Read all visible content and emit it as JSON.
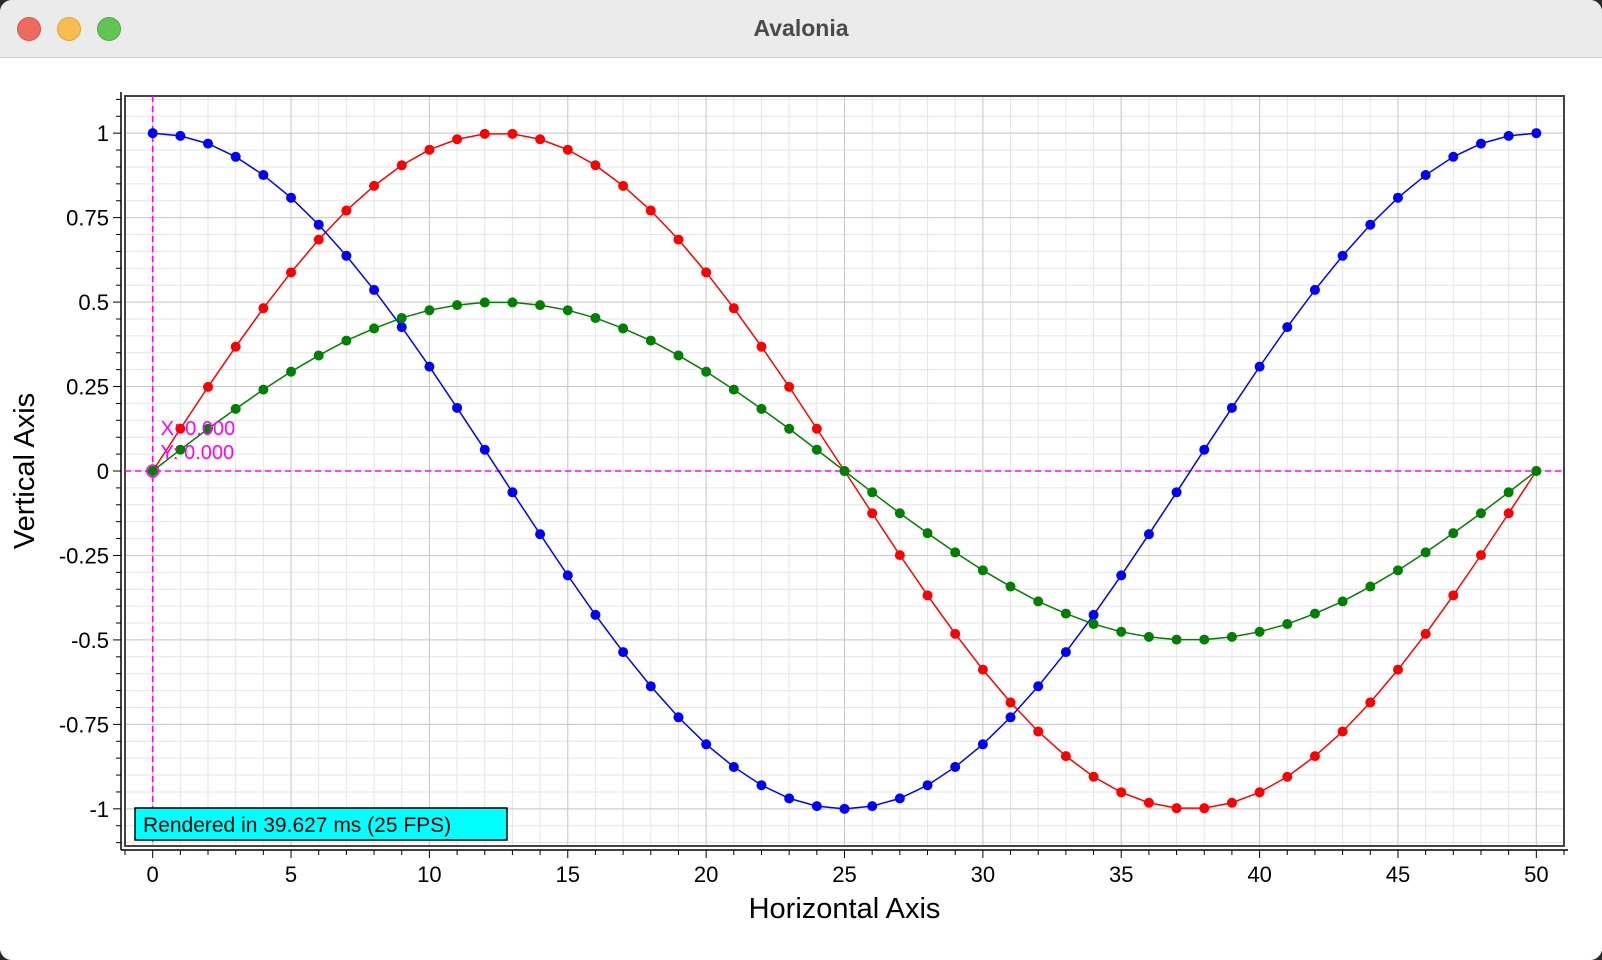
{
  "window": {
    "title": "Avalonia"
  },
  "chart_data": {
    "type": "line",
    "xlabel": "Horizontal Axis",
    "ylabel": "Vertical Axis",
    "xlim": [
      -1.0,
      51.0
    ],
    "ylim": [
      -1.11,
      1.11
    ],
    "x_ticks": [
      "0",
      "5",
      "10",
      "15",
      "20",
      "25",
      "30",
      "35",
      "40",
      "45",
      "50"
    ],
    "y_ticks": [
      "1",
      "0.75",
      "0.5",
      "0.25",
      "0",
      "-0.25",
      "-0.5",
      "-0.75",
      "-1"
    ],
    "grid": true,
    "x": [
      0,
      1,
      2,
      3,
      4,
      5,
      6,
      7,
      8,
      9,
      10,
      11,
      12,
      13,
      14,
      15,
      16,
      17,
      18,
      19,
      20,
      21,
      22,
      23,
      24,
      25,
      26,
      27,
      28,
      29,
      30,
      31,
      32,
      33,
      34,
      35,
      36,
      37,
      38,
      39,
      40,
      41,
      42,
      43,
      44,
      45,
      46,
      47,
      48,
      49,
      50
    ],
    "series": [
      {
        "color": "#ff0000",
        "values": [
          0.0,
          0.125,
          0.249,
          0.368,
          0.482,
          0.588,
          0.685,
          0.771,
          0.844,
          0.905,
          0.951,
          0.982,
          0.998,
          0.998,
          0.982,
          0.951,
          0.905,
          0.844,
          0.771,
          0.685,
          0.588,
          0.482,
          0.368,
          0.249,
          0.125,
          0.0,
          -0.125,
          -0.249,
          -0.368,
          -0.482,
          -0.588,
          -0.685,
          -0.771,
          -0.844,
          -0.905,
          -0.951,
          -0.982,
          -0.998,
          -0.998,
          -0.982,
          -0.951,
          -0.905,
          -0.844,
          -0.771,
          -0.685,
          -0.588,
          -0.482,
          -0.368,
          -0.249,
          -0.125,
          0.0
        ]
      },
      {
        "color": "#0000ff",
        "values": [
          1.0,
          0.992,
          0.969,
          0.93,
          0.876,
          0.809,
          0.729,
          0.637,
          0.536,
          0.426,
          0.309,
          0.187,
          0.063,
          -0.063,
          -0.187,
          -0.309,
          -0.426,
          -0.536,
          -0.637,
          -0.729,
          -0.809,
          -0.876,
          -0.93,
          -0.969,
          -0.992,
          -1.0,
          -0.992,
          -0.969,
          -0.93,
          -0.876,
          -0.809,
          -0.729,
          -0.637,
          -0.536,
          -0.426,
          -0.309,
          -0.187,
          -0.063,
          0.063,
          0.187,
          0.309,
          0.426,
          0.536,
          0.637,
          0.729,
          0.809,
          0.876,
          0.93,
          0.969,
          0.992,
          1.0
        ]
      },
      {
        "color": "#008000",
        "values": [
          0.0,
          0.063,
          0.125,
          0.184,
          0.241,
          0.294,
          0.342,
          0.386,
          0.422,
          0.453,
          0.476,
          0.491,
          0.499,
          0.499,
          0.491,
          0.476,
          0.453,
          0.422,
          0.386,
          0.342,
          0.294,
          0.241,
          0.184,
          0.125,
          0.063,
          0.0,
          -0.063,
          -0.125,
          -0.184,
          -0.241,
          -0.294,
          -0.342,
          -0.386,
          -0.422,
          -0.453,
          -0.476,
          -0.491,
          -0.499,
          -0.499,
          -0.491,
          -0.476,
          -0.453,
          -0.422,
          -0.386,
          -0.342,
          -0.294,
          -0.241,
          -0.184,
          -0.125,
          -0.063,
          0.0
        ]
      }
    ],
    "crosshair": {
      "x": 0,
      "y": 0,
      "x_label": "X: 0.000",
      "y_label": "Y: 0.000",
      "color": "#ff00ff"
    },
    "benchmark_label": "Rendered in 39.627 ms (25 FPS)",
    "benchmark_bg": "#00ffff"
  }
}
